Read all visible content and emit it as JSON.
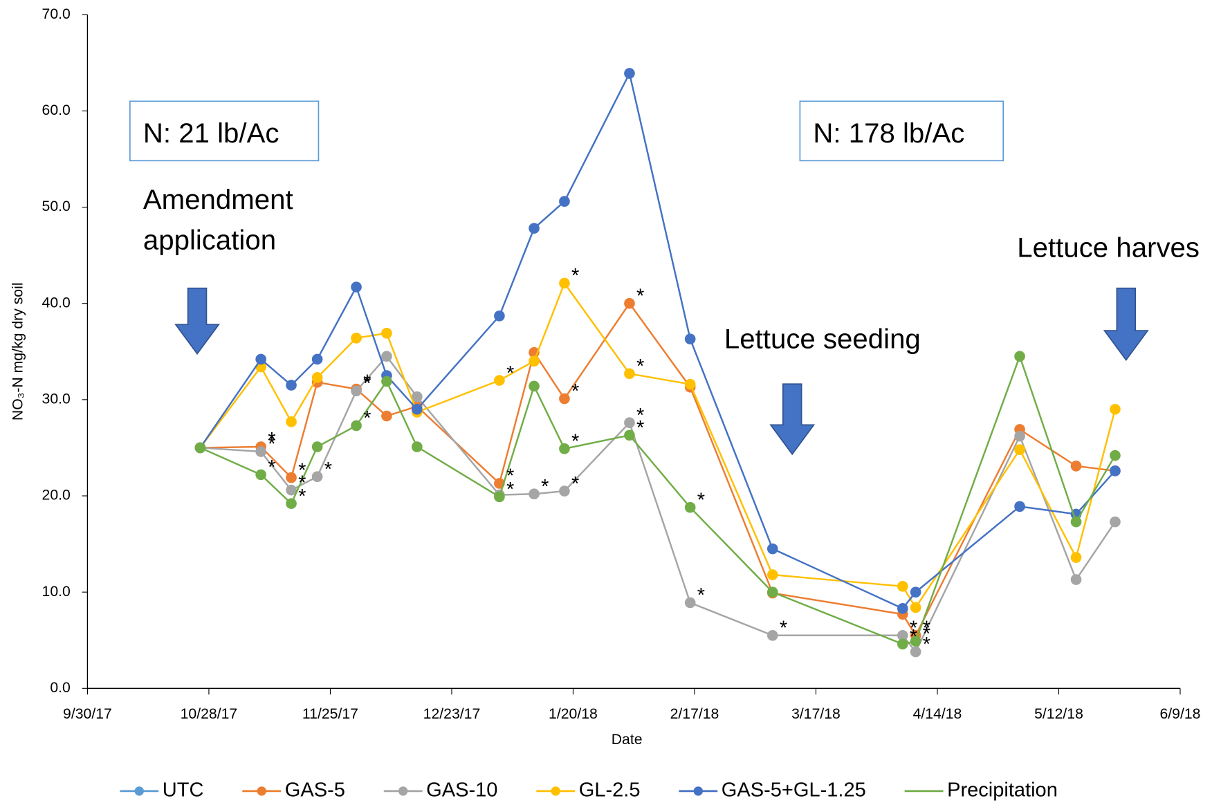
{
  "chart_data": {
    "type": "line",
    "x_title": "Date",
    "y_title": "NO₃-N mg/kg dry soil",
    "x": [
      "10/26/17",
      "11/9/17",
      "11/16/17",
      "11/22/17",
      "12/1/17",
      "12/8/17",
      "12/15/17",
      "1/3/18",
      "1/11/18",
      "1/18/18",
      "2/2/18",
      "2/16/18",
      "3/7/18",
      "4/6/18",
      "4/9/18",
      "5/3/18",
      "5/16/18",
      "5/25/18"
    ],
    "xlim": [
      "9/30/17",
      "6/9/18"
    ],
    "xticks": [
      "9/30/17",
      "10/28/17",
      "11/25/17",
      "12/23/17",
      "1/20/18",
      "2/17/18",
      "3/17/18",
      "4/14/18",
      "5/12/18",
      "6/9/18"
    ],
    "ylim": [
      0,
      70
    ],
    "yticks": [
      {
        "value": 0,
        "label": "0.0"
      },
      {
        "value": 10,
        "label": "10.0"
      },
      {
        "value": 20,
        "label": "20.0"
      },
      {
        "value": 30,
        "label": "30.0"
      },
      {
        "value": 40,
        "label": "40.0"
      },
      {
        "value": 50,
        "label": "50.0"
      },
      {
        "value": 60,
        "label": "60.0"
      },
      {
        "value": 70,
        "label": "70.0"
      }
    ],
    "legend": "bottom",
    "series": [
      {
        "name": "UTC",
        "color": "#5B9BD5",
        "values": [
          null,
          null,
          null,
          null,
          null,
          null,
          null,
          null,
          null,
          null,
          null,
          null,
          null,
          null,
          null,
          null,
          null,
          null
        ]
      },
      {
        "name": "GAS-5",
        "color": "#ED7D31",
        "values": [
          25,
          25.1,
          21.9,
          31.8,
          31.1,
          28.3,
          29.3,
          21.3,
          34.9,
          30.1,
          40.0,
          31.3,
          9.9,
          7.7,
          5.5,
          26.9,
          23.1,
          22.6
        ],
        "annotations": [
          null,
          "*",
          "*",
          null,
          "*",
          null,
          null,
          "*",
          null,
          "*",
          "*",
          null,
          null,
          null,
          "*",
          null,
          null,
          null
        ]
      },
      {
        "name": "GAS-10",
        "color": "#A5A5A5",
        "values": [
          25,
          24.6,
          20.6,
          22.0,
          30.9,
          34.5,
          30.3,
          20.1,
          20.2,
          20.5,
          27.6,
          8.9,
          5.5,
          5.5,
          3.8,
          26.2,
          11.3,
          17.3
        ],
        "annotations": [
          null,
          "*",
          "*",
          "*",
          "*",
          null,
          null,
          null,
          "*",
          "*",
          "*",
          "*",
          "*",
          "*",
          "*",
          null,
          null,
          null
        ]
      },
      {
        "name": "GL-2.5",
        "color": "#FFC000",
        "values": [
          25,
          33.4,
          27.7,
          32.3,
          36.4,
          36.9,
          28.7,
          32.0,
          34.0,
          42.1,
          32.7,
          31.6,
          11.8,
          10.6,
          8.4,
          24.8,
          13.6,
          29.0
        ],
        "annotations": [
          null,
          null,
          null,
          null,
          null,
          null,
          null,
          "*",
          null,
          "*",
          "*",
          null,
          null,
          null,
          null,
          null,
          null,
          null
        ]
      },
      {
        "name": "GAS-5+GL-1.25",
        "color": "#4472C4",
        "values": [
          25,
          34.2,
          31.5,
          34.2,
          41.7,
          32.5,
          29.0,
          38.7,
          47.8,
          50.6,
          63.9,
          36.3,
          14.5,
          8.3,
          10.0,
          18.9,
          18.1,
          22.6
        ]
      },
      {
        "name": "Precipitation",
        "color": "#70AD47",
        "legend_marker": false,
        "values": [
          25,
          22.2,
          19.2,
          25.1,
          27.3,
          31.9,
          25.1,
          19.9,
          31.4,
          24.9,
          26.3,
          18.8,
          10.0,
          4.6,
          4.9,
          34.5,
          17.3,
          24.2
        ],
        "annotations": [
          null,
          "*",
          "*",
          null,
          "*",
          null,
          null,
          "*",
          null,
          "*",
          "*",
          "*",
          null,
          "*",
          "*",
          null,
          null,
          null
        ]
      }
    ],
    "callouts": [
      {
        "text": "N: 21 lb/Ac",
        "boxed": true
      },
      {
        "text": "N: 178 lb/Ac",
        "boxed": true
      },
      {
        "text": [
          "Amendment",
          "application"
        ],
        "arrow": true
      },
      {
        "text": "Lettuce seeding",
        "arrow": true
      },
      {
        "text": "Lettuce harves",
        "arrow": true
      }
    ]
  }
}
